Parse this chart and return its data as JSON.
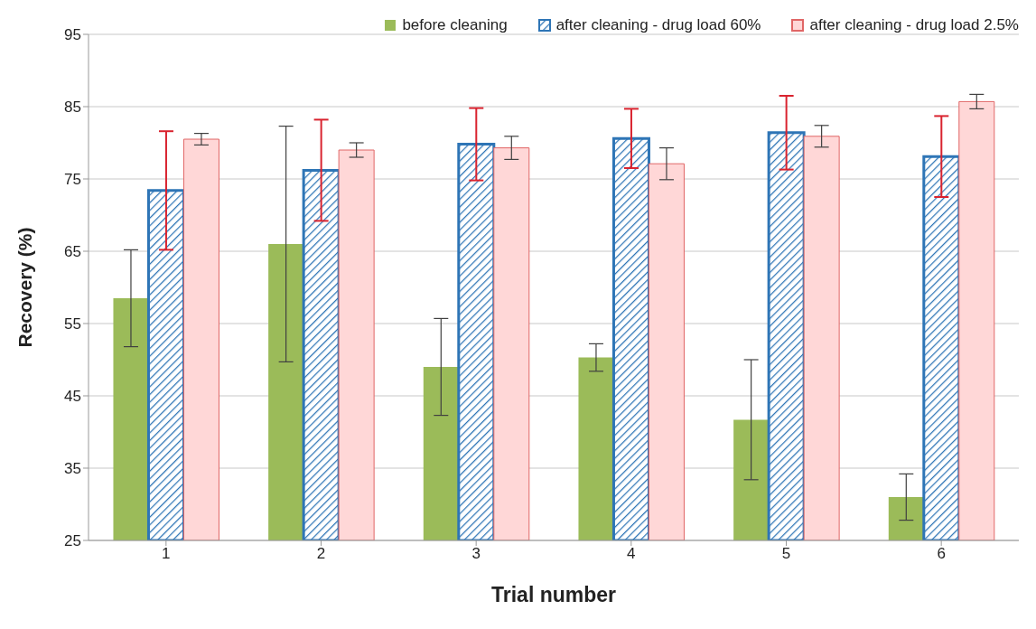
{
  "chart_data": {
    "type": "bar",
    "xlabel": "Trial number",
    "ylabel": "Recovery (%)",
    "categories": [
      "1",
      "2",
      "3",
      "4",
      "5",
      "6"
    ],
    "series": [
      {
        "name": "before cleaning",
        "color": "#9bbb59",
        "values": [
          58.5,
          66,
          49,
          50.3,
          41.7,
          31
        ],
        "errors": [
          6.7,
          16.3,
          6.7,
          1.9,
          8.3,
          3.2
        ]
      },
      {
        "name": "after cleaning - drug load 60%",
        "color": "#2e75b6",
        "values": [
          73.4,
          76.2,
          79.8,
          80.6,
          81.4,
          78.1
        ],
        "errors": [
          8.2,
          7,
          5,
          4.1,
          5.1,
          5.6
        ]
      },
      {
        "name": "after cleaning - drug load 2.5%",
        "color": "#ffd7d7",
        "values": [
          80.5,
          79,
          79.3,
          77.1,
          80.9,
          85.7
        ],
        "errors": [
          0.8,
          1,
          1.6,
          2.2,
          1.5,
          1
        ]
      }
    ],
    "ylim": [
      25,
      95
    ],
    "yticks": [
      25,
      35,
      45,
      55,
      65,
      75,
      85,
      95
    ],
    "grid": "y",
    "legend": "top"
  }
}
